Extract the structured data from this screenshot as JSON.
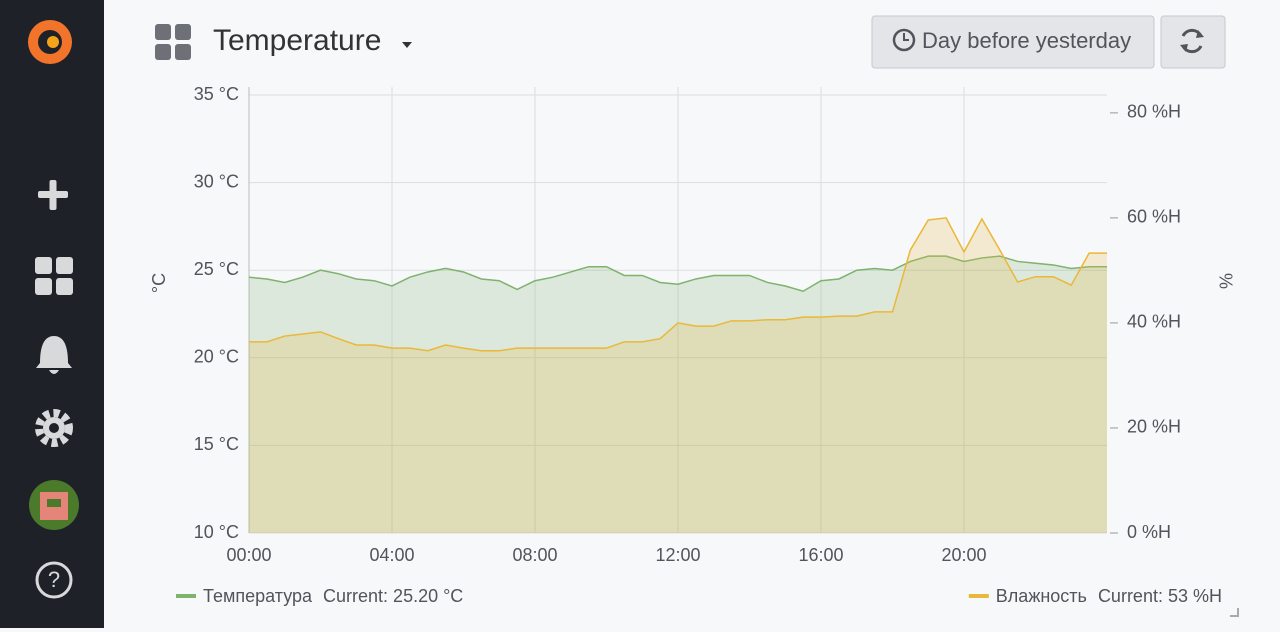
{
  "header": {
    "title": "Temperature",
    "time_range": "Day before yesterday"
  },
  "chart_data": {
    "type": "line",
    "y_label": "°C",
    "y2_label": "%",
    "x": [
      0,
      0.5,
      1,
      1.5,
      2,
      2.5,
      3,
      3.5,
      4,
      4.5,
      5,
      5.5,
      6,
      6.5,
      7,
      7.5,
      8,
      8.5,
      9,
      9.5,
      10,
      10.5,
      11,
      11.5,
      12,
      12.5,
      13,
      13.5,
      14,
      14.5,
      15,
      15.5,
      16,
      16.5,
      17,
      17.5,
      18,
      18.5,
      19,
      19.5,
      20,
      20.5,
      21,
      21.5,
      22,
      22.5,
      23,
      23.5,
      24
    ],
    "xlim": [
      0,
      24
    ],
    "xticks": [
      {
        "value": 0,
        "label": "00:00"
      },
      {
        "value": 4,
        "label": "04:00"
      },
      {
        "value": 8,
        "label": "08:00"
      },
      {
        "value": 12,
        "label": "12:00"
      },
      {
        "value": 16,
        "label": "16:00"
      },
      {
        "value": 20,
        "label": "20:00"
      }
    ],
    "ylim": [
      10,
      35
    ],
    "yticks": [
      {
        "value": 10,
        "label": "10 °C"
      },
      {
        "value": 15,
        "label": "15 °C"
      },
      {
        "value": 20,
        "label": "20 °C"
      },
      {
        "value": 25,
        "label": "25 °C"
      },
      {
        "value": 30,
        "label": "30 °C"
      },
      {
        "value": 35,
        "label": "35 °C"
      }
    ],
    "y2lim": [
      0,
      83.4
    ],
    "y2ticks": [
      {
        "value": 0,
        "label": "0 %H"
      },
      {
        "value": 20,
        "label": "20 %H"
      },
      {
        "value": 40,
        "label": "40 %H"
      },
      {
        "value": 60,
        "label": "60 %H"
      },
      {
        "value": 80,
        "label": "80 %H"
      }
    ],
    "grid": true,
    "series": [
      {
        "name": "Температура",
        "color": "#7eb26d",
        "axis": "y",
        "legend_current": "Current: 25.20 °C",
        "values": [
          24.6,
          24.5,
          24.3,
          24.6,
          25.0,
          24.8,
          24.5,
          24.4,
          24.1,
          24.6,
          24.9,
          25.1,
          24.9,
          24.5,
          24.4,
          23.9,
          24.4,
          24.6,
          24.9,
          25.2,
          25.2,
          24.7,
          24.7,
          24.3,
          24.2,
          24.5,
          24.7,
          24.7,
          24.7,
          24.3,
          24.1,
          23.8,
          24.4,
          24.5,
          25.0,
          25.1,
          25.0,
          25.5,
          25.8,
          25.8,
          25.5,
          25.7,
          25.8,
          25.5,
          25.4,
          25.3,
          25.1,
          25.2,
          25.2
        ]
      },
      {
        "name": "Влажность",
        "color": "#eab839",
        "axis": "y2",
        "legend_current": "Current: 53 %H",
        "values": [
          36.4,
          36.4,
          37.5,
          37.9,
          38.3,
          37.0,
          35.8,
          35.8,
          35.2,
          35.2,
          34.7,
          35.8,
          35.2,
          34.7,
          34.7,
          35.2,
          35.2,
          35.2,
          35.2,
          35.2,
          35.2,
          36.4,
          36.4,
          37.0,
          40.0,
          39.4,
          39.4,
          40.4,
          40.4,
          40.6,
          40.6,
          41.1,
          41.1,
          41.3,
          41.3,
          42.1,
          42.1,
          53.9,
          59.6,
          60.0,
          53.5,
          59.8,
          53.9,
          47.8,
          48.8,
          48.8,
          47.2,
          53.3,
          53.3
        ]
      }
    ]
  }
}
